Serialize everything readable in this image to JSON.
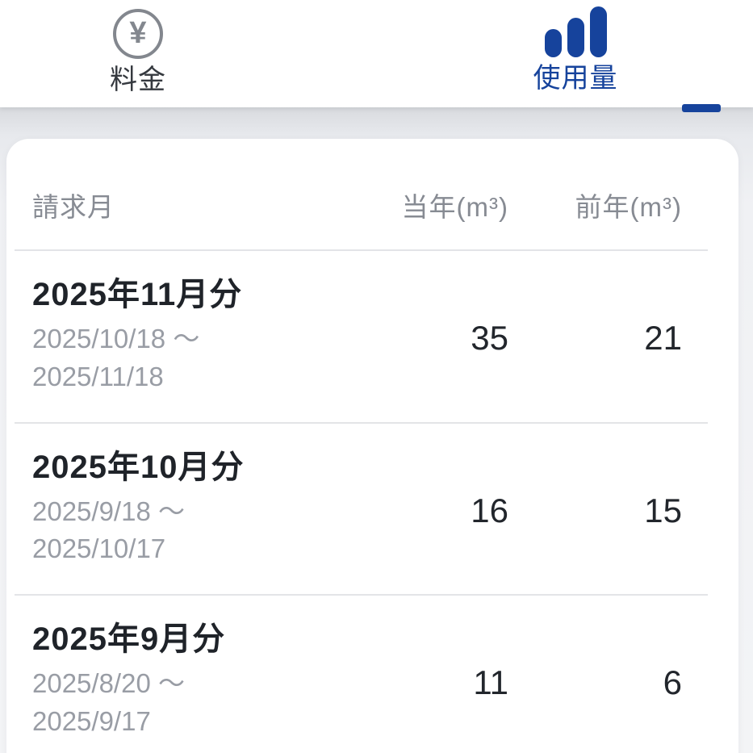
{
  "header": {
    "tabs": [
      {
        "label": "料金",
        "icon": "yen-circle-icon",
        "active": false
      },
      {
        "label": "使用量",
        "icon": "bar-chart-icon",
        "active": true
      }
    ]
  },
  "usage_table": {
    "columns": {
      "month": "請求月",
      "current_year": "当年(m³)",
      "previous_year": "前年(m³)"
    },
    "rows": [
      {
        "month_label": "2025年11月分",
        "period_start": "2025/10/18 〜",
        "period_end": "2025/11/18",
        "current_year": "35",
        "previous_year": "21"
      },
      {
        "month_label": "2025年10月分",
        "period_start": "2025/9/18 〜",
        "period_end": "2025/10/17",
        "current_year": "16",
        "previous_year": "15"
      },
      {
        "month_label": "2025年9月分",
        "period_start": "2025/8/20 〜",
        "period_end": "2025/9/17",
        "current_year": "11",
        "previous_year": "6"
      }
    ]
  },
  "icons": {
    "yen_symbol": "¥"
  },
  "colors": {
    "accent_blue": "#16439c",
    "inactive_icon_gray": "#83878e",
    "column_header_gray": "#878b93",
    "date_gray": "#999da5",
    "text_dark": "#1f2329",
    "page_background": "#eceef1",
    "card_background": "#ffffff"
  }
}
